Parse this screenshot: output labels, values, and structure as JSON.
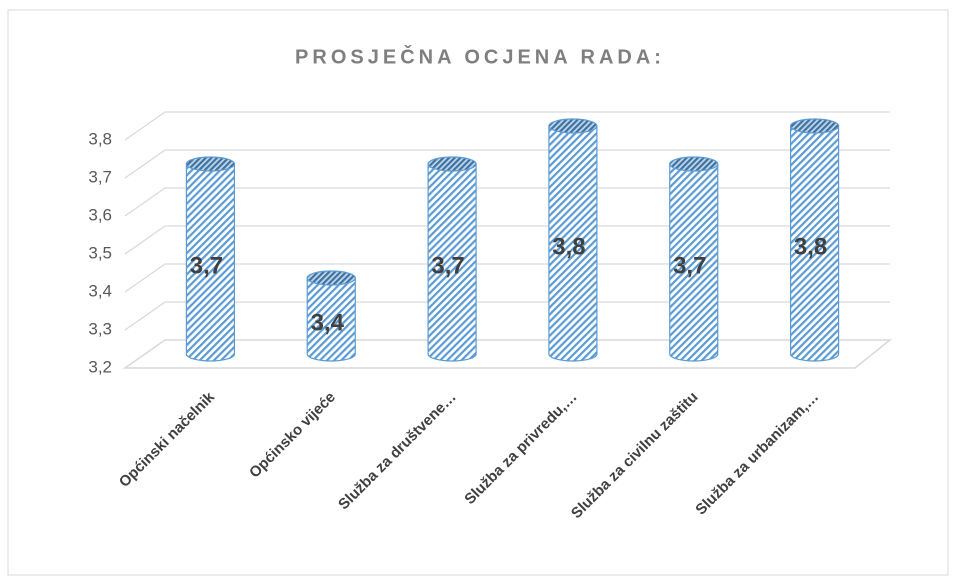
{
  "chart_data": {
    "type": "bar3d",
    "title": "PROSJEČNA OCJENA RADA:",
    "categories": [
      "Općinski načelnik",
      "Općinsko vijeće",
      "Služba za društvene…",
      "Služba za privredu,…",
      "Služba za civilnu zaštitu",
      "Služba za urbanizam,…"
    ],
    "values": [
      3.7,
      3.4,
      3.7,
      3.8,
      3.7,
      3.8
    ],
    "value_labels": [
      "3,7",
      "3,4",
      "3,7",
      "3,8",
      "3,7",
      "3,8"
    ],
    "color": "#5b9bd5",
    "ylim": [
      3.2,
      3.8
    ],
    "yticks": [
      {
        "value": 3.2,
        "label": "3,2"
      },
      {
        "value": 3.3,
        "label": "3,3"
      },
      {
        "value": 3.4,
        "label": "3,4"
      },
      {
        "value": 3.5,
        "label": "3,5"
      },
      {
        "value": 3.6,
        "label": "3,6"
      },
      {
        "value": 3.7,
        "label": "3,7"
      },
      {
        "value": 3.8,
        "label": "3,8"
      }
    ],
    "grid": true
  }
}
